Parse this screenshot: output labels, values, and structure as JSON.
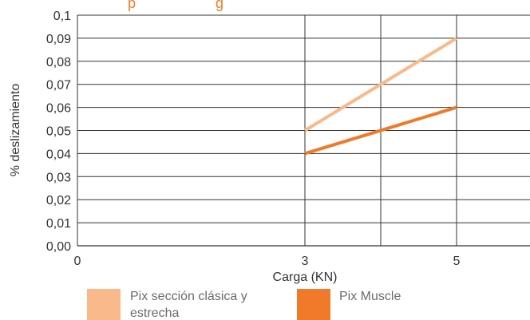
{
  "chart_data": {
    "type": "line",
    "title": "",
    "title_fragment": "p                    g",
    "xlabel": "Carga (KN)",
    "ylabel": "% deslizamiento",
    "x_ticks": [
      "0",
      "3",
      "5"
    ],
    "y_ticks": [
      "0,00",
      "0,01",
      "0,02",
      "0,03",
      "0,04",
      "0,05",
      "0,06",
      "0,07",
      "0,08",
      "0,09",
      "0,1"
    ],
    "xlim": [
      0,
      6
    ],
    "ylim": [
      0,
      0.1
    ],
    "grid": true,
    "legend_position": "bottom",
    "series": [
      {
        "name_lines": [
          "Pix sección clásica y",
          "estrecha"
        ],
        "name": "Pix sección clásica y estrecha",
        "color": "#F9B98A",
        "x": [
          3,
          5
        ],
        "y": [
          0.05,
          0.09
        ]
      },
      {
        "name_lines": [
          "Pix Muscle"
        ],
        "name": "Pix Muscle",
        "color": "#F07A2A",
        "x": [
          3,
          5
        ],
        "y": [
          0.04,
          0.06
        ]
      }
    ]
  }
}
